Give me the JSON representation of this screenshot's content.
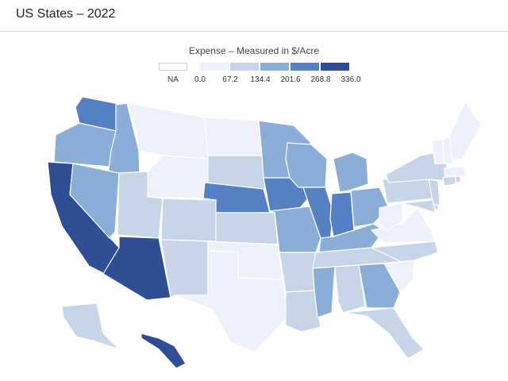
{
  "header": {
    "title": "US States – 2022"
  },
  "legend": {
    "title": "Expense – Measured in $/Acre",
    "na_label": "NA",
    "ticks": [
      "0.0",
      "67.2",
      "134.4",
      "201.6",
      "268.8",
      "336.0"
    ],
    "colors": [
      "#eef0fb",
      "#c6d6e8",
      "#8aaed7",
      "#5680c4",
      "#2f4e96"
    ],
    "na_color": "#ffffff",
    "border_color": "#c0c4cc"
  },
  "map_data": {
    "unit": "$/Acre",
    "bins": [
      {
        "range": [
          0.0,
          67.2
        ],
        "states": [
          "MT",
          "WY",
          "ND",
          "OK",
          "TX",
          "WV",
          "VA",
          "SC",
          "ME",
          "NH",
          "VT",
          "MA"
        ]
      },
      {
        "range": [
          67.2,
          134.4
        ],
        "states": [
          "SD",
          "UT",
          "CO",
          "KS",
          "NM",
          "AR",
          "LA",
          "AL",
          "MS-no",
          "TN",
          "NC",
          "KY-no",
          "NY",
          "PA",
          "NJ",
          "CT",
          "RI",
          "MD",
          "DE",
          "FL",
          "AK"
        ]
      },
      {
        "range": [
          134.4,
          201.6
        ],
        "states": [
          "OR",
          "ID",
          "NV",
          "MN",
          "WI",
          "MO",
          "MI",
          "OH",
          "KY",
          "MS",
          "GA"
        ]
      },
      {
        "range": [
          201.6,
          268.8
        ],
        "states": [
          "WA",
          "NE",
          "IA",
          "IL",
          "IN"
        ]
      },
      {
        "range": [
          268.8,
          336.0
        ],
        "states": [
          "CA",
          "AZ",
          "HI"
        ]
      }
    ]
  }
}
